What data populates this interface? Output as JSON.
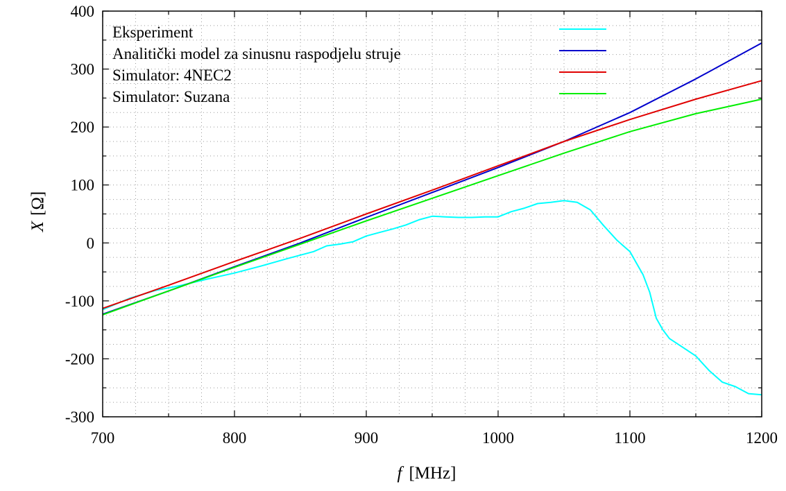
{
  "chart_data": {
    "type": "line",
    "title": "",
    "xlabel_symbol": "f",
    "xlabel_unit": "[MHz]",
    "ylabel_symbol": "X",
    "ylabel_unit": "[Ω]",
    "xlim": [
      700,
      1200
    ],
    "ylim": [
      -300,
      400
    ],
    "x_ticks": [
      700,
      800,
      900,
      1000,
      1100,
      1200
    ],
    "y_ticks": [
      -300,
      -200,
      -100,
      0,
      100,
      200,
      300,
      400
    ],
    "x_tick_labels": [
      "700",
      "800",
      "900",
      "1000",
      "1100",
      "1200"
    ],
    "y_tick_labels": [
      "-300",
      "-200",
      "-100",
      "0",
      "100",
      "200",
      "300",
      "400"
    ],
    "grid": true,
    "legend_position": "top-left",
    "series": [
      {
        "name": "Eksperiment",
        "color": "#00ffff",
        "points": [
          [
            700,
            -115
          ],
          [
            720,
            -96
          ],
          [
            740,
            -82
          ],
          [
            760,
            -73
          ],
          [
            780,
            -62
          ],
          [
            800,
            -52
          ],
          [
            820,
            -40
          ],
          [
            840,
            -27
          ],
          [
            860,
            -15
          ],
          [
            870,
            -5
          ],
          [
            880,
            -2
          ],
          [
            890,
            2
          ],
          [
            900,
            12
          ],
          [
            910,
            18
          ],
          [
            920,
            24
          ],
          [
            930,
            31
          ],
          [
            940,
            40
          ],
          [
            950,
            46
          ],
          [
            960,
            45
          ],
          [
            970,
            44
          ],
          [
            980,
            44
          ],
          [
            990,
            45
          ],
          [
            1000,
            45
          ],
          [
            1010,
            54
          ],
          [
            1020,
            60
          ],
          [
            1030,
            68
          ],
          [
            1040,
            70
          ],
          [
            1050,
            73
          ],
          [
            1060,
            70
          ],
          [
            1070,
            57
          ],
          [
            1080,
            30
          ],
          [
            1090,
            5
          ],
          [
            1095,
            -5
          ],
          [
            1100,
            -15
          ],
          [
            1110,
            -55
          ],
          [
            1115,
            -85
          ],
          [
            1120,
            -130
          ],
          [
            1125,
            -150
          ],
          [
            1130,
            -165
          ],
          [
            1140,
            -180
          ],
          [
            1150,
            -195
          ],
          [
            1160,
            -220
          ],
          [
            1170,
            -240
          ],
          [
            1180,
            -248
          ],
          [
            1190,
            -260
          ],
          [
            1200,
            -262
          ]
        ]
      },
      {
        "name": "Analitički model za sinusnu raspodjelu struje",
        "color": "#0000cc",
        "points": [
          [
            700,
            -123
          ],
          [
            750,
            -83
          ],
          [
            800,
            -41
          ],
          [
            850,
            0
          ],
          [
            900,
            44
          ],
          [
            950,
            87
          ],
          [
            1000,
            130
          ],
          [
            1050,
            175
          ],
          [
            1100,
            225
          ],
          [
            1150,
            283
          ],
          [
            1200,
            345
          ]
        ]
      },
      {
        "name": "Simulator: 4NEC2",
        "color": "#e00000",
        "points": [
          [
            700,
            -113
          ],
          [
            750,
            -73
          ],
          [
            800,
            -32
          ],
          [
            850,
            8
          ],
          [
            900,
            50
          ],
          [
            950,
            91
          ],
          [
            1000,
            133
          ],
          [
            1050,
            175
          ],
          [
            1100,
            213
          ],
          [
            1150,
            248
          ],
          [
            1200,
            280
          ]
        ]
      },
      {
        "name": "Simulator: Suzana",
        "color": "#00ee00",
        "points": [
          [
            700,
            -124
          ],
          [
            750,
            -83
          ],
          [
            800,
            -42
          ],
          [
            850,
            -2
          ],
          [
            900,
            38
          ],
          [
            950,
            77
          ],
          [
            1000,
            116
          ],
          [
            1050,
            155
          ],
          [
            1100,
            192
          ],
          [
            1150,
            223
          ],
          [
            1200,
            248
          ]
        ]
      }
    ]
  }
}
